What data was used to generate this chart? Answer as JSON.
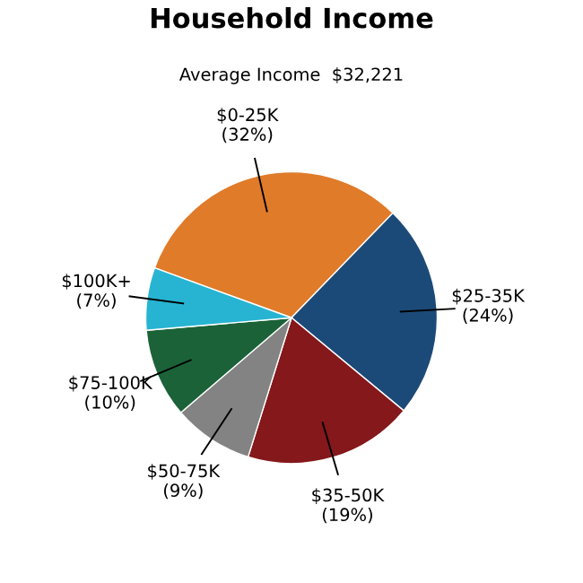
{
  "chart_data": {
    "type": "pie",
    "title": "Household Income",
    "subtitle": "Average Income  $32,221",
    "categories": [
      "$0-25K",
      "$25-35K",
      "$35-50K",
      "$50-75K",
      "$75-100K",
      "$100K+"
    ],
    "values": [
      32,
      24,
      19,
      9,
      10,
      7
    ],
    "value_labels": [
      "(32%)",
      "(24%)",
      "(19%)",
      "(9%)",
      "(10%)",
      "(7%)"
    ],
    "colors": [
      "#e07b2a",
      "#1c4a78",
      "#85181b",
      "#838383",
      "#1b6238",
      "#27b4d2"
    ],
    "legend": false
  }
}
